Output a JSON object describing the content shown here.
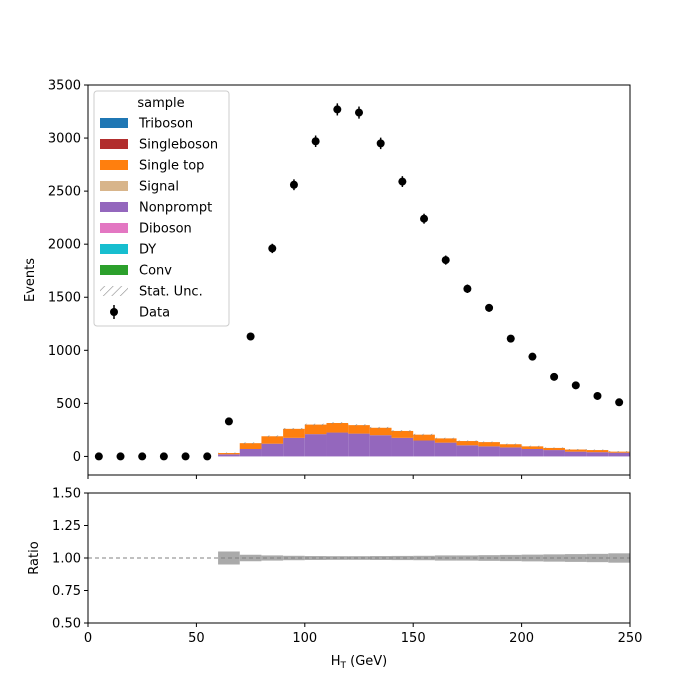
{
  "chart_data": {
    "type": "bar",
    "subtype": "stacked-histogram-with-ratio",
    "xlabel": "H",
    "xlabel_sub": "T",
    "xlabel_unit": " (GeV)",
    "main": {
      "ylabel": "Events",
      "xlim": [
        0,
        250
      ],
      "ylim": [
        -175,
        3500
      ],
      "yticks": [
        0,
        500,
        1000,
        1500,
        2000,
        2500,
        3000,
        3500
      ],
      "bin_edges": [
        60,
        70,
        80,
        90,
        100,
        110,
        120,
        130,
        140,
        150,
        160,
        170,
        180,
        190,
        200,
        210,
        220,
        230,
        240,
        250
      ],
      "stack_order": [
        "Nonprompt",
        "Single top"
      ],
      "series": [
        {
          "name": "Nonprompt",
          "color": "#9467bd",
          "values": [
            20,
            70,
            120,
            175,
            210,
            225,
            215,
            200,
            175,
            150,
            130,
            105,
            95,
            85,
            70,
            60,
            45,
            40,
            35
          ]
        },
        {
          "name": "Single top",
          "color": "#ff7f0e",
          "values": [
            12,
            55,
            70,
            85,
            90,
            90,
            80,
            70,
            65,
            55,
            40,
            40,
            40,
            30,
            25,
            20,
            20,
            20,
            10
          ]
        }
      ],
      "stat_unc_halfwidth": [
        5,
        8,
        8,
        8,
        8,
        8,
        8,
        8,
        8,
        8,
        6,
        6,
        6,
        6,
        6,
        5,
        5,
        5,
        5
      ],
      "data_points": {
        "x": [
          5,
          15,
          25,
          35,
          45,
          55,
          65,
          75,
          85,
          95,
          105,
          115,
          125,
          135,
          145,
          155,
          165,
          175,
          185,
          195,
          205,
          215,
          225,
          235,
          245
        ],
        "y": [
          0,
          0,
          0,
          0,
          0,
          0,
          330,
          1130,
          1960,
          2560,
          2970,
          3270,
          3240,
          2950,
          2590,
          2240,
          1850,
          1580,
          1400,
          1110,
          940,
          750,
          670,
          570,
          510
        ],
        "err": [
          0,
          0,
          0,
          0,
          0,
          0,
          18,
          34,
          44,
          51,
          54,
          57,
          57,
          54,
          51,
          47,
          43,
          40,
          37,
          33,
          31,
          27,
          26,
          24,
          23
        ]
      },
      "legend": {
        "title": "sample",
        "position": "upper-left",
        "entries": [
          {
            "label": "Triboson",
            "color": "#1f77b4",
            "kind": "patch"
          },
          {
            "label": "Singleboson",
            "color": "#b22e2e",
            "kind": "patch"
          },
          {
            "label": "Single top",
            "color": "#ff7f0e",
            "kind": "patch"
          },
          {
            "label": "Signal",
            "color": "#d8b58b",
            "kind": "patch"
          },
          {
            "label": "Nonprompt",
            "color": "#9467bd",
            "kind": "patch"
          },
          {
            "label": "Diboson",
            "color": "#e377c2",
            "kind": "patch"
          },
          {
            "label": "DY",
            "color": "#17becf",
            "kind": "patch"
          },
          {
            "label": "Conv",
            "color": "#2ca02c",
            "kind": "patch"
          },
          {
            "label": "Stat. Unc.",
            "color": "#888888",
            "kind": "hatch"
          },
          {
            "label": "Data",
            "color": "#000000",
            "kind": "errorbar"
          }
        ]
      }
    },
    "ratio": {
      "ylabel": "Ratio",
      "ylim": [
        0.5,
        1.5
      ],
      "yticks": [
        "0.50",
        "0.75",
        "1.00",
        "1.25",
        "1.50"
      ],
      "ytick_values": [
        0.5,
        0.75,
        1.0,
        1.25,
        1.5
      ],
      "reference_line": 1.0,
      "band_color": "#aaaaaa",
      "band_halfwidth": [
        0.05,
        0.025,
        0.02,
        0.017,
        0.015,
        0.014,
        0.014,
        0.015,
        0.016,
        0.017,
        0.02,
        0.02,
        0.022,
        0.024,
        0.026,
        0.028,
        0.03,
        0.032,
        0.036
      ]
    },
    "xticks": [
      0,
      50,
      100,
      150,
      200,
      250
    ]
  }
}
